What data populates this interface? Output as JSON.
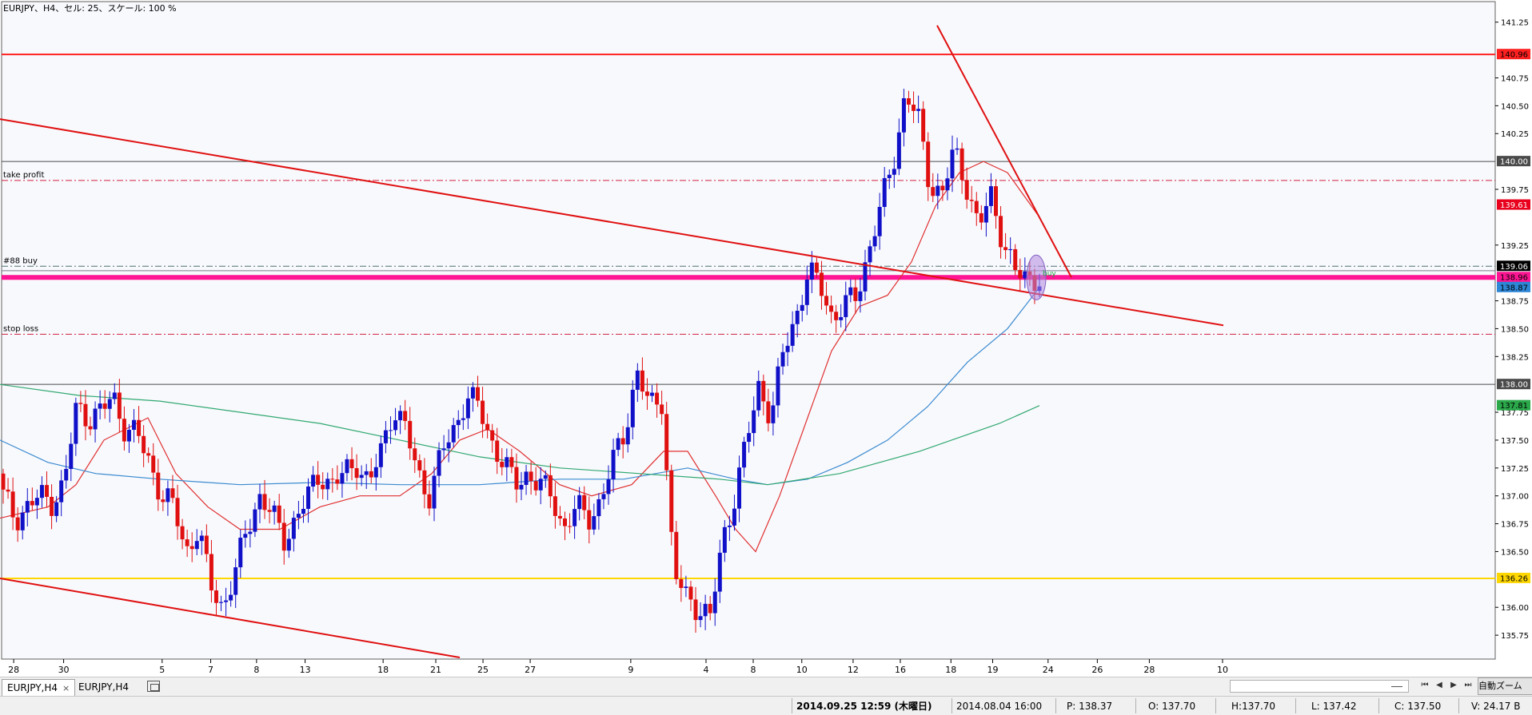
{
  "chart_data": {
    "type": "candlestick",
    "title": "EURJPY、H4、セル: 25、スケール: 100 %",
    "symbol": "EURJPY",
    "timeframe": "H4",
    "y_ticks": [
      "141.25",
      "140.75",
      "140.50",
      "140.25",
      "139.75",
      "139.25",
      "138.75",
      "138.50",
      "138.25",
      "137.75",
      "137.50",
      "137.25",
      "137.00",
      "136.75",
      "136.50",
      "136.00",
      "135.75"
    ],
    "x_ticks": [
      "28",
      "30",
      "5",
      "7",
      "8",
      "13",
      "18",
      "21",
      "25",
      "27",
      "9",
      "4",
      "8",
      "10",
      "12",
      "16",
      "18",
      "19",
      "24",
      "26",
      "28",
      "10"
    ],
    "ylim": [
      135.55,
      141.42
    ],
    "price_tags": [
      {
        "value": 140.96,
        "label": "140.96",
        "bg": "#ff2020",
        "fg": "#000000"
      },
      {
        "value": 140.0,
        "label": "140.00",
        "bg": "#4a4a4a",
        "fg": "#ffffff"
      },
      {
        "value": 139.61,
        "label": "139.61",
        "bg": "#e8001c",
        "fg": "#ffffff"
      },
      {
        "value": 139.06,
        "label": "139.06",
        "bg": "#000000",
        "fg": "#ffffff"
      },
      {
        "value": 138.96,
        "label": "138.96",
        "bg": "#ff1493",
        "fg": "#000000"
      },
      {
        "value": 138.87,
        "label": "138.87",
        "bg": "#2e86d6",
        "fg": "#000000"
      },
      {
        "value": 138.0,
        "label": "138.00",
        "bg": "#4a4a4a",
        "fg": "#ffffff"
      },
      {
        "value": 137.81,
        "label": "137.81",
        "bg": "#2aa84a",
        "fg": "#000000"
      },
      {
        "value": 136.26,
        "label": "136.26",
        "bg": "#ffd700",
        "fg": "#000000"
      }
    ],
    "horizontal_lines": [
      {
        "value": 140.96,
        "color": "#ff2020",
        "style": "solid",
        "width": 2
      },
      {
        "value": 140.0,
        "color": "#4a4a4a",
        "style": "solid",
        "width": 1
      },
      {
        "value": 139.83,
        "color": "#d02040",
        "style": "dashdot",
        "width": 1
      },
      {
        "value": 139.06,
        "color": "#507070",
        "style": "dashdot",
        "width": 1
      },
      {
        "value": 139.02,
        "color": "#7a7a8a",
        "style": "solid",
        "width": 1
      },
      {
        "value": 138.96,
        "color": "#ff1493",
        "style": "solid",
        "width": 6
      },
      {
        "value": 138.45,
        "color": "#d02040",
        "style": "dashdot",
        "width": 1
      },
      {
        "value": 138.0,
        "color": "#4a4a4a",
        "style": "solid",
        "width": 1
      },
      {
        "value": 136.26,
        "color": "#ffd700",
        "style": "solid",
        "width": 2
      }
    ],
    "line_labels": [
      {
        "text": "take profit",
        "value": 139.83
      },
      {
        "text": "#88 buy",
        "value": 139.06
      },
      {
        "text": "stop loss",
        "value": 138.45
      }
    ],
    "trendlines": [
      {
        "x1": 0,
        "y1": 140.38,
        "x2": 1530,
        "y2": 138.53
      },
      {
        "x1": 0,
        "y1": 136.26,
        "x2": 575,
        "y2": 135.55
      },
      {
        "x1": 1172,
        "y1": 141.22,
        "x2": 1340,
        "y2": 138.96
      }
    ],
    "ohlc": {
      "x_start": 4,
      "x_end": 1300,
      "open_start": 137.2,
      "base": [
        137.0,
        136.8,
        136.9,
        137.0,
        136.95,
        137.1,
        137.8,
        137.7,
        137.75,
        137.9,
        137.6,
        137.55,
        137.3,
        137.0,
        136.9,
        136.5,
        136.7,
        136.2,
        136.0,
        136.3,
        136.7,
        137.0,
        136.85,
        136.6,
        136.8,
        137.0,
        137.2,
        137.1,
        137.2,
        137.3,
        137.1,
        137.4,
        137.8,
        137.6,
        137.2,
        137.0,
        137.4,
        137.6,
        137.9,
        137.8,
        137.5,
        137.3,
        137.1,
        137.2,
        137.1,
        137.0,
        136.7,
        136.9,
        136.8,
        136.95,
        137.3,
        137.6,
        138.1,
        137.8,
        137.9,
        136.3,
        136.1,
        136.0,
        135.9,
        136.6,
        137.0,
        137.5,
        138.0,
        137.7,
        138.3,
        138.6,
        139.0,
        138.9,
        138.6,
        138.7,
        138.8,
        139.2,
        139.6,
        140.0,
        140.6,
        140.4,
        139.8,
        139.7,
        140.1,
        139.8,
        139.4,
        139.7,
        139.3,
        139.0,
        138.95,
        138.96
      ],
      "amplitude": 0.14,
      "count": 215
    },
    "moving_averages": [
      {
        "color": "#e03030",
        "points": [
          [
            0,
            136.8
          ],
          [
            60,
            136.9
          ],
          [
            95,
            137.1
          ],
          [
            130,
            137.5
          ],
          [
            185,
            137.7
          ],
          [
            220,
            137.2
          ],
          [
            260,
            136.9
          ],
          [
            300,
            136.7
          ],
          [
            350,
            136.7
          ],
          [
            400,
            136.9
          ],
          [
            450,
            137.0
          ],
          [
            500,
            137.0
          ],
          [
            540,
            137.2
          ],
          [
            575,
            137.5
          ],
          [
            610,
            137.6
          ],
          [
            650,
            137.4
          ],
          [
            700,
            137.1
          ],
          [
            740,
            137.0
          ],
          [
            790,
            137.1
          ],
          [
            830,
            137.4
          ],
          [
            860,
            137.4
          ],
          [
            895,
            137.0
          ],
          [
            920,
            136.7
          ],
          [
            945,
            136.5
          ],
          [
            975,
            137.0
          ],
          [
            1010,
            137.7
          ],
          [
            1040,
            138.3
          ],
          [
            1075,
            138.7
          ],
          [
            1110,
            138.8
          ],
          [
            1140,
            139.1
          ],
          [
            1170,
            139.6
          ],
          [
            1200,
            139.9
          ],
          [
            1230,
            140.0
          ],
          [
            1260,
            139.9
          ],
          [
            1300,
            139.5
          ]
        ]
      },
      {
        "color": "#3a8ad0",
        "points": [
          [
            0,
            137.5
          ],
          [
            60,
            137.3
          ],
          [
            120,
            137.2
          ],
          [
            200,
            137.15
          ],
          [
            300,
            137.1
          ],
          [
            400,
            137.12
          ],
          [
            500,
            137.1
          ],
          [
            600,
            137.1
          ],
          [
            700,
            137.15
          ],
          [
            780,
            137.15
          ],
          [
            860,
            137.25
          ],
          [
            920,
            137.15
          ],
          [
            960,
            137.1
          ],
          [
            1010,
            137.15
          ],
          [
            1060,
            137.3
          ],
          [
            1110,
            137.5
          ],
          [
            1160,
            137.8
          ],
          [
            1210,
            138.2
          ],
          [
            1260,
            138.5
          ],
          [
            1300,
            138.87
          ]
        ]
      },
      {
        "color": "#30a870",
        "points": [
          [
            0,
            138.0
          ],
          [
            100,
            137.9
          ],
          [
            200,
            137.85
          ],
          [
            300,
            137.75
          ],
          [
            400,
            137.65
          ],
          [
            500,
            137.5
          ],
          [
            600,
            137.35
          ],
          [
            700,
            137.25
          ],
          [
            800,
            137.2
          ],
          [
            900,
            137.15
          ],
          [
            960,
            137.1
          ],
          [
            1050,
            137.2
          ],
          [
            1150,
            137.4
          ],
          [
            1250,
            137.65
          ],
          [
            1300,
            137.81
          ]
        ]
      }
    ],
    "marker": {
      "x": 1296,
      "value": 138.96,
      "label": "buy",
      "color": "#b088e0"
    },
    "grid": false,
    "legend": "none"
  },
  "tabs": [
    {
      "label": "EURJPY,H4",
      "close": "×"
    },
    {
      "label": "EURJPY,H4"
    }
  ],
  "status": {
    "datetime": "2014.09.25 12:59 (木曜日)",
    "bar_time": "2014.08.04 16:00",
    "p": "P: 138.37",
    "o": "O: 137.70",
    "h": "H:137.70",
    "l": "L: 137.42",
    "c": "C: 137.50",
    "v": "V: 24.17 B"
  },
  "toolbar": {
    "auto_scroll_label": "自動ズーム"
  }
}
